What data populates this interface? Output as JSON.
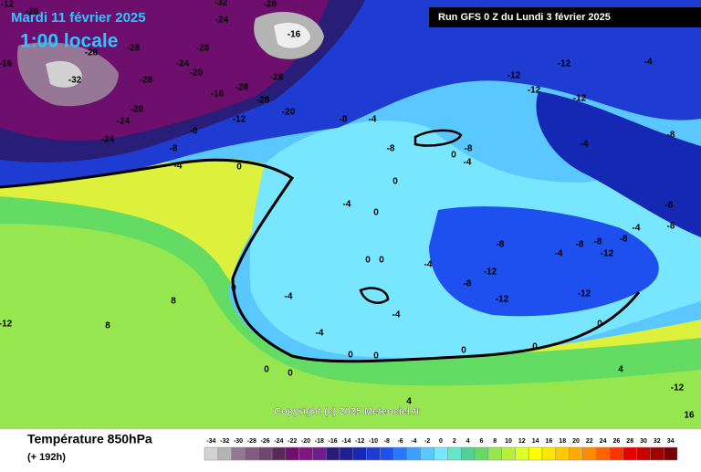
{
  "header": {
    "date": "Mardi 11 février 2025",
    "time": "1:00 locale",
    "run": "Run GFS 0 Z du Lundi 3 février 2025",
    "copyright": "Copyright (c) 2025 Meteociel.fr"
  },
  "footer": {
    "title": "Température 850hPa",
    "lead": "(+ 192h)"
  },
  "scale": {
    "ticks": [
      -34,
      -32,
      -30,
      -28,
      -26,
      -24,
      -22,
      -20,
      -18,
      -16,
      -14,
      -12,
      -10,
      -8,
      -6,
      -4,
      -2,
      0,
      2,
      4,
      6,
      8,
      10,
      12,
      14,
      16,
      18,
      20,
      22,
      24,
      26,
      28,
      30,
      32,
      34
    ],
    "colors": [
      "#d2d2d2",
      "#b4b4b4",
      "#967896",
      "#825a82",
      "#6e466e",
      "#5a285a",
      "#6e0f6e",
      "#821482",
      "#6e1e8c",
      "#281e78",
      "#1e1e96",
      "#1428b4",
      "#1e3cd2",
      "#1e50f0",
      "#2878ff",
      "#3ca0ff",
      "#5ac8ff",
      "#78e6ff",
      "#64e6c8",
      "#50d296",
      "#64dc64",
      "#96e650",
      "#b4f03c",
      "#dcff28",
      "#ffff00",
      "#ffe600",
      "#ffc800",
      "#ffaa00",
      "#ff8c00",
      "#ff6400",
      "#ff3200",
      "#e60000",
      "#c80000",
      "#a00000",
      "#780000"
    ]
  },
  "contour_labels": [
    -12,
    -20,
    -24,
    -32,
    -28,
    -16,
    -16,
    -28,
    -32,
    -28,
    -28,
    -24,
    -20,
    -28,
    -16,
    -28,
    -28,
    -28,
    -20,
    -24,
    -12,
    -20,
    -24,
    -8,
    -8,
    -4,
    -12,
    -12,
    -12,
    -12,
    -4,
    -8,
    -4,
    0,
    -8,
    -8,
    0,
    -4,
    -4,
    0,
    0,
    -4,
    -8,
    -12,
    -12,
    -8,
    -12,
    -4,
    0,
    0,
    0,
    -4,
    -4,
    -4,
    0,
    0,
    0,
    0,
    0,
    4,
    8,
    -12,
    8,
    -12,
    4,
    16,
    0,
    0,
    -8,
    -8,
    -8,
    -4,
    -8,
    -8,
    -12,
    -4,
    -8
  ]
}
